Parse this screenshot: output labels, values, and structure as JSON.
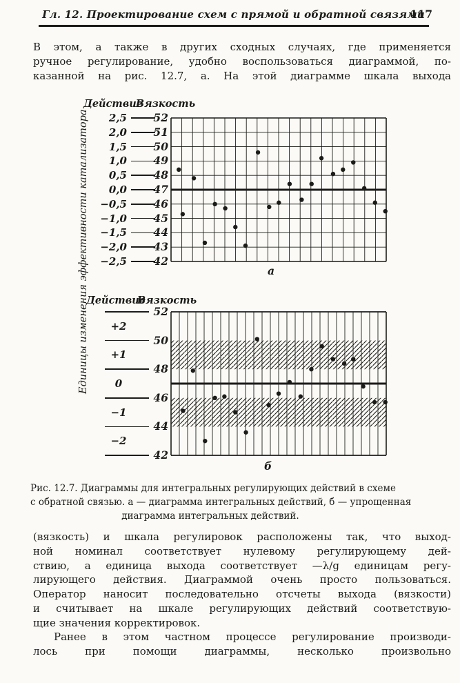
{
  "header": {
    "chapter_title": "Гл. 12. Проектирование схем с прямой и обратной связями",
    "page_number": "117"
  },
  "paragraphs": {
    "p1": [
      "В этом, а также в других сходных случаях, где применяется",
      "ручное регулирование, удобно воспользоваться диаграммой, по-",
      "казанной на рис. 12.7, а. На этой диаграмме шкала выхода"
    ],
    "p2": [
      "(вязкость) и шкала регулировок расположены так, что выход-",
      "ной номинал соответствует нулевому регулирующему дей-",
      "ствию, а единица выхода соответствует —λ/g единицам регу-",
      "лирующего действия. Диаграммой очень просто пользоваться.",
      "Оператор наносит последовательно отсчеты выхода (вязкости)",
      "и считывает на шкале регулирующих действий соответствую-",
      "щие значения корректировок."
    ],
    "p3": [
      "Ранее в этом частном процессе регулирование производи-",
      "лось при помощи диаграммы, несколько произвольно"
    ]
  },
  "figure": {
    "y_axis_label": "Единицы изменения эффективности катализатора",
    "caption": [
      "Рис. 12.7. Диаграммы для интегральных регулирующих действий в схеме",
      "с обратной связью. а — диаграмма интегральных действий, б — упрощенная",
      "диаграмма интегральных действий."
    ]
  },
  "ink_color": "#1b1b19",
  "chart_data": [
    {
      "id": "a",
      "type": "scatter",
      "sublabel": "а",
      "column_headers": {
        "action": "Действие",
        "viscosity": "Вязкость"
      },
      "action_ticks": [
        "2,5",
        "2,0",
        "1,5",
        "1,0",
        "0,5",
        "0,0",
        "−0,5",
        "−1,0",
        "−1,5",
        "−2,0",
        "−2,5"
      ],
      "viscosity_ticks": [
        "52",
        "51",
        "50",
        "49",
        "48",
        "47",
        "46",
        "45",
        "44",
        "43",
        "42"
      ],
      "ylim": [
        42,
        52
      ],
      "reference_line_at": 47,
      "grid": {
        "horizontal_lines": true,
        "vertical_intervals": 20,
        "legend": "off"
      },
      "points": [
        [
          0.036,
          48.4
        ],
        [
          0.054,
          45.3
        ],
        [
          0.106,
          47.8
        ],
        [
          0.157,
          43.3
        ],
        [
          0.204,
          46.0
        ],
        [
          0.252,
          45.7
        ],
        [
          0.299,
          44.4
        ],
        [
          0.346,
          43.1
        ],
        [
          0.404,
          49.6
        ],
        [
          0.456,
          45.8
        ],
        [
          0.501,
          46.1
        ],
        [
          0.551,
          47.4
        ],
        [
          0.607,
          46.3
        ],
        [
          0.653,
          47.4
        ],
        [
          0.699,
          49.2
        ],
        [
          0.753,
          48.1
        ],
        [
          0.799,
          48.4
        ],
        [
          0.847,
          48.9
        ],
        [
          0.898,
          47.1
        ],
        [
          0.948,
          46.1
        ],
        [
          0.996,
          45.5
        ]
      ]
    },
    {
      "id": "b",
      "type": "scatter",
      "sublabel": "б",
      "column_headers": {
        "action": "Действие",
        "viscosity": "Вязкость"
      },
      "action_ticks": [
        "+2",
        "+1",
        "0",
        "−1",
        "−2"
      ],
      "viscosity_ticks": [
        "52",
        "50",
        "48",
        "46",
        "44",
        "42"
      ],
      "ylim": [
        42,
        52
      ],
      "reference_line_at": 47,
      "hatched_bands": [
        [
          48,
          50
        ],
        [
          44,
          46
        ]
      ],
      "grid": {
        "horizontal_lines": false,
        "vertical_intervals": 26,
        "legend": "off"
      },
      "points": [
        [
          0.056,
          45.1
        ],
        [
          0.102,
          47.9
        ],
        [
          0.158,
          43.0
        ],
        [
          0.204,
          46.0
        ],
        [
          0.248,
          46.1
        ],
        [
          0.299,
          45.0
        ],
        [
          0.348,
          43.6
        ],
        [
          0.4,
          50.1
        ],
        [
          0.454,
          45.5
        ],
        [
          0.5,
          46.3
        ],
        [
          0.551,
          47.1
        ],
        [
          0.602,
          46.1
        ],
        [
          0.652,
          48.0
        ],
        [
          0.701,
          49.6
        ],
        [
          0.753,
          48.7
        ],
        [
          0.805,
          48.4
        ],
        [
          0.847,
          48.7
        ],
        [
          0.893,
          46.8
        ],
        [
          0.946,
          45.7
        ],
        [
          0.996,
          45.7
        ]
      ]
    }
  ]
}
